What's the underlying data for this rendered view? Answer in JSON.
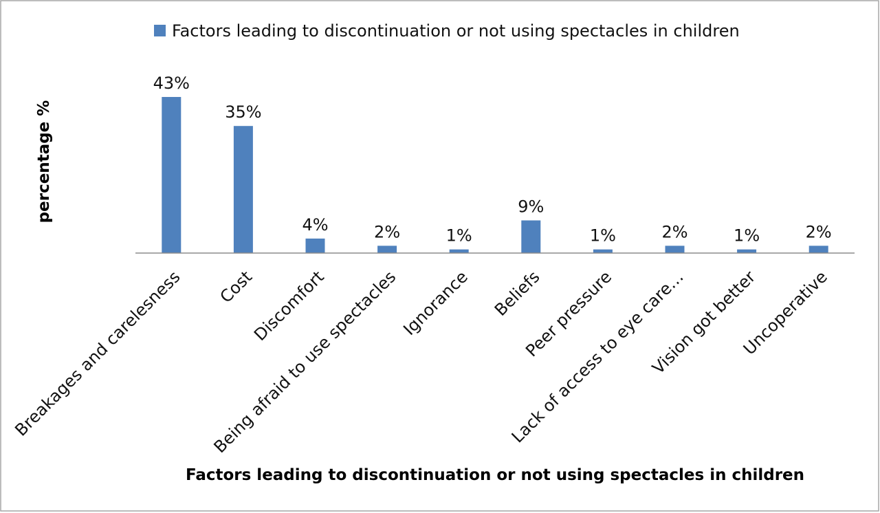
{
  "chart_data": {
    "type": "bar",
    "legend": {
      "entries": [
        "Factors leading to discontinuation or not using spectacles in children"
      ],
      "position": "top"
    },
    "categories": [
      "Breakages and carelesness",
      "Cost",
      "Discomfort",
      "Being afraid to use spectacles",
      "Ignorance",
      "Beliefs",
      "Peer pressure",
      "Lack of access to eye care…",
      "Vision got better",
      "Uncoperative"
    ],
    "series": [
      {
        "name": "Factors leading to discontinuation or not using spectacles in children",
        "values": [
          43,
          35,
          4,
          2,
          1,
          9,
          1,
          2,
          1,
          2
        ],
        "labels": [
          "43%",
          "35%",
          "4%",
          "2%",
          "1%",
          "9%",
          "1%",
          "2%",
          "1%",
          "2%"
        ],
        "color": "#4f81bd"
      }
    ],
    "xlabel": "Factors leading to discontinuation or not using spectacles in children",
    "ylabel": "percentage  %",
    "ylim": [
      0,
      43
    ],
    "grid": false,
    "border_color": "#a6a6a6",
    "axis_color": "#8c8c8c"
  }
}
